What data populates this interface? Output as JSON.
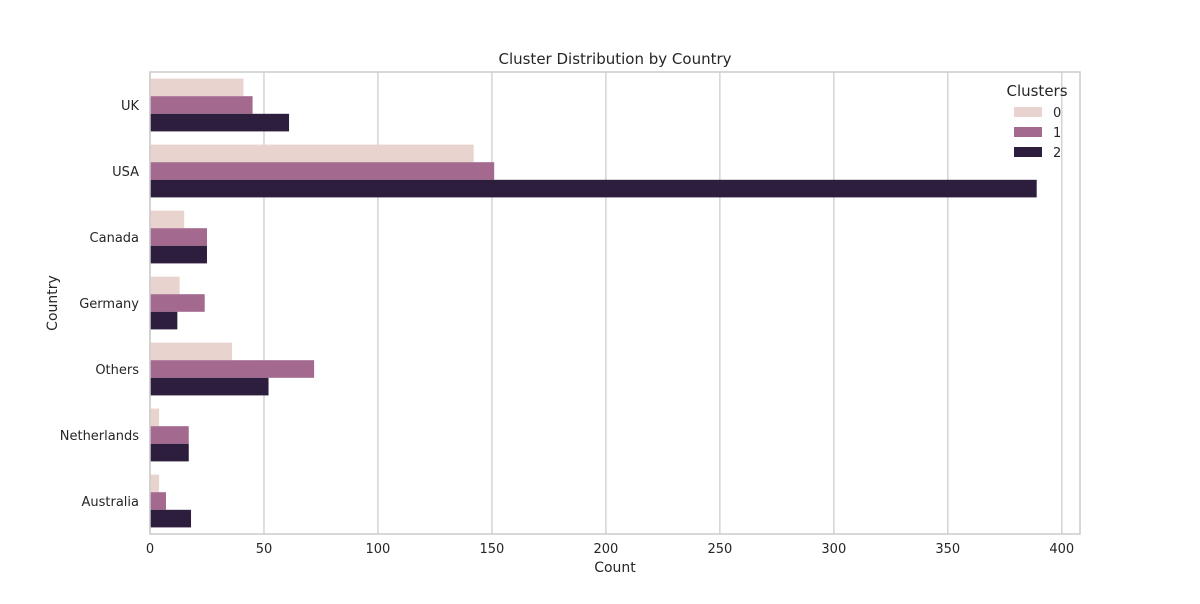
{
  "chart_data": {
    "type": "bar",
    "orientation": "horizontal",
    "title": "Cluster Distribution by Country",
    "xlabel": "Count",
    "ylabel": "Country",
    "xlim": [
      0,
      408
    ],
    "xticks": [
      0,
      50,
      100,
      150,
      200,
      250,
      300,
      350,
      400
    ],
    "grid": "vertical",
    "categories": [
      "UK",
      "USA",
      "Canada",
      "Germany",
      "Others",
      "Netherlands",
      "Australia"
    ],
    "legend": {
      "title": "Clusters",
      "placement": "top-right"
    },
    "series": [
      {
        "name": "0",
        "color": "#e8d3cf",
        "values": [
          41,
          142,
          15,
          13,
          36,
          4,
          4
        ]
      },
      {
        "name": "1",
        "color": "#a3698e",
        "values": [
          45,
          151,
          25,
          24,
          72,
          17,
          7
        ]
      },
      {
        "name": "2",
        "color": "#2d1e3e",
        "values": [
          61,
          389,
          25,
          12,
          52,
          17,
          18
        ]
      }
    ],
    "colors": {
      "grid": "#d4d4d4",
      "frame": "#cccccc",
      "text": "#262626"
    }
  }
}
